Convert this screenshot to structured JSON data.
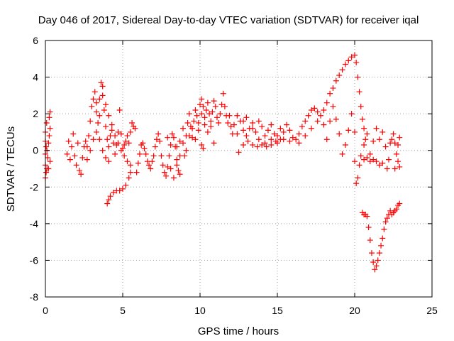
{
  "chart_data": {
    "type": "scatter",
    "title": "Day 046 of 2017, Sidereal Day-to-day VTEC variation (SDTVAR) for receiver iqal",
    "xlabel": "GPS time / hours",
    "ylabel": "SDTVAR / TECUs",
    "xlim": [
      0,
      25
    ],
    "ylim": [
      -8,
      6
    ],
    "xticks": [
      "0",
      "5",
      "10",
      "15",
      "20",
      "25"
    ],
    "yticks": [
      "-8",
      "-6",
      "-4",
      "-2",
      "0",
      "2",
      "4",
      "6"
    ],
    "grid": true,
    "marker": "+",
    "colors": {
      "series": "#ff0000",
      "grid": "#a0a0a0",
      "axis": "#000000"
    },
    "series": [
      {
        "name": "SDTVAR",
        "points": [
          [
            0.0,
            -1.5
          ],
          [
            0.0,
            -0.8
          ],
          [
            0.0,
            -0.2
          ],
          [
            0.0,
            0.5
          ],
          [
            0.0,
            1.0
          ],
          [
            0.05,
            -1.2
          ],
          [
            0.05,
            0.2
          ],
          [
            0.08,
            1.5
          ],
          [
            0.1,
            -1.0
          ],
          [
            0.1,
            0.0
          ],
          [
            0.15,
            -0.4
          ],
          [
            0.2,
            -1.0
          ],
          [
            0.2,
            0.4
          ],
          [
            0.25,
            0.8
          ],
          [
            0.25,
            1.8
          ],
          [
            0.3,
            -0.6
          ],
          [
            0.3,
            1.2
          ],
          [
            0.3,
            2.1
          ],
          [
            1.4,
            -0.2
          ],
          [
            1.5,
            0.5
          ],
          [
            1.6,
            -0.5
          ],
          [
            1.7,
            0.2
          ],
          [
            1.8,
            0.9
          ],
          [
            1.9,
            -0.3
          ],
          [
            2.0,
            -0.8
          ],
          [
            2.1,
            0.4
          ],
          [
            2.2,
            -1.1
          ],
          [
            2.3,
            -1.3
          ],
          [
            2.4,
            -0.4
          ],
          [
            2.5,
            0.2
          ],
          [
            2.6,
            0.5
          ],
          [
            2.7,
            0.2
          ],
          [
            2.8,
            0.8
          ],
          [
            2.9,
            1.6
          ],
          [
            3.0,
            2.4
          ],
          [
            3.1,
            2.8
          ],
          [
            3.2,
            3.2
          ],
          [
            3.3,
            2.1
          ],
          [
            3.4,
            1.5
          ],
          [
            3.5,
            2.8
          ],
          [
            3.6,
            3.7
          ],
          [
            3.7,
            3.0
          ],
          [
            3.8,
            2.2
          ],
          [
            3.9,
            1.3
          ],
          [
            4.0,
            0.6
          ],
          [
            4.1,
            0.2
          ],
          [
            4.2,
            0.8
          ],
          [
            4.3,
            1.4
          ],
          [
            4.4,
            0.4
          ],
          [
            4.5,
            -0.2
          ],
          [
            4.6,
            0.3
          ],
          [
            4.7,
            1.0
          ],
          [
            4.8,
            2.2
          ],
          [
            4.9,
            0.9
          ],
          [
            5.0,
            0.1
          ],
          [
            5.1,
            0.3
          ],
          [
            5.2,
            0.5
          ],
          [
            5.3,
            0.8
          ],
          [
            5.4,
            0.4
          ],
          [
            5.5,
            1.0
          ],
          [
            5.6,
            1.5
          ],
          [
            5.7,
            1.3
          ],
          [
            5.8,
            1.2
          ],
          [
            2.7,
            -0.5
          ],
          [
            2.9,
            0.0
          ],
          [
            3.1,
            0.6
          ],
          [
            3.3,
            1.0
          ],
          [
            3.5,
            0.6
          ],
          [
            3.7,
            0.0
          ],
          [
            3.9,
            -0.4
          ],
          [
            4.1,
            -0.6
          ],
          [
            3.3,
            2.6
          ],
          [
            3.5,
            1.9
          ],
          [
            3.7,
            3.5
          ],
          [
            3.9,
            2.5
          ],
          [
            4.1,
            1.9
          ],
          [
            4.3,
            1.1
          ],
          [
            4.5,
            0.8
          ],
          [
            4.7,
            0.4
          ],
          [
            4.9,
            0.0
          ],
          [
            5.1,
            -0.3
          ],
          [
            5.3,
            -0.6
          ],
          [
            5.5,
            -0.8
          ],
          [
            4.0,
            -2.9
          ],
          [
            4.1,
            -2.7
          ],
          [
            4.2,
            -2.5
          ],
          [
            4.4,
            -2.3
          ],
          [
            4.6,
            -2.2
          ],
          [
            4.8,
            -2.2
          ],
          [
            5.0,
            -2.1
          ],
          [
            5.2,
            -1.9
          ],
          [
            5.4,
            -1.5
          ],
          [
            5.5,
            -1.2
          ],
          [
            5.9,
            -1.2
          ],
          [
            6.0,
            -0.7
          ],
          [
            6.1,
            -0.2
          ],
          [
            6.2,
            0.3
          ],
          [
            6.3,
            0.4
          ],
          [
            6.4,
            0.1
          ],
          [
            6.5,
            -0.2
          ],
          [
            6.6,
            -0.6
          ],
          [
            6.7,
            -0.8
          ],
          [
            6.8,
            -1.0
          ],
          [
            6.9,
            -0.6
          ],
          [
            7.0,
            -0.3
          ],
          [
            7.1,
            0.2
          ],
          [
            7.2,
            0.6
          ],
          [
            7.3,
            0.9
          ],
          [
            7.4,
            0.5
          ],
          [
            7.5,
            -0.3
          ],
          [
            7.6,
            -0.8
          ],
          [
            7.7,
            -1.2
          ],
          [
            7.8,
            -1.4
          ],
          [
            7.9,
            -0.9
          ],
          [
            8.0,
            -0.3
          ],
          [
            8.1,
            0.3
          ],
          [
            8.2,
            0.9
          ],
          [
            8.3,
            0.7
          ],
          [
            8.4,
            0.2
          ],
          [
            8.5,
            -0.5
          ],
          [
            8.6,
            -1.1
          ],
          [
            8.7,
            -1.3
          ],
          [
            7.9,
            0.7
          ],
          [
            8.1,
            -1.0
          ],
          [
            8.3,
            -1.5
          ],
          [
            8.5,
            -0.8
          ],
          [
            8.7,
            0.5
          ],
          [
            8.9,
            1.2
          ],
          [
            9.0,
            -0.3
          ],
          [
            9.1,
            0.8
          ],
          [
            9.2,
            1.5
          ],
          [
            9.3,
            2.0
          ],
          [
            9.4,
            1.3
          ],
          [
            9.5,
            0.7
          ],
          [
            9.6,
            1.6
          ],
          [
            9.7,
            2.2
          ],
          [
            9.8,
            1.9
          ],
          [
            9.9,
            1.1
          ],
          [
            10.0,
            2.5
          ],
          [
            10.1,
            2.8
          ],
          [
            10.2,
            2.4
          ],
          [
            10.3,
            1.8
          ],
          [
            10.4,
            2.2
          ],
          [
            10.5,
            2.6
          ],
          [
            10.6,
            2.0
          ],
          [
            10.7,
            1.6
          ],
          [
            10.8,
            2.1
          ],
          [
            10.9,
            2.7
          ],
          [
            11.0,
            2.4
          ],
          [
            11.1,
            1.8
          ],
          [
            11.2,
            1.5
          ],
          [
            11.3,
            2.0
          ],
          [
            11.4,
            2.5
          ],
          [
            11.5,
            3.1
          ],
          [
            11.6,
            2.4
          ],
          [
            11.7,
            1.9
          ],
          [
            11.8,
            1.5
          ],
          [
            11.9,
            1.9
          ],
          [
            12.0,
            1.3
          ],
          [
            12.1,
            0.9
          ],
          [
            8.5,
            0.2
          ],
          [
            8.7,
            -0.3
          ],
          [
            8.9,
            0.4
          ],
          [
            9.1,
            0.0
          ],
          [
            9.3,
            0.8
          ],
          [
            9.5,
            1.2
          ],
          [
            9.7,
            0.6
          ],
          [
            9.9,
            1.5
          ],
          [
            10.1,
            2.0
          ],
          [
            10.3,
            1.4
          ],
          [
            10.5,
            1.0
          ],
          [
            10.7,
            1.3
          ],
          [
            10.9,
            0.4
          ],
          [
            10.1,
            0.3
          ],
          [
            10.2,
            0.1
          ],
          [
            12.2,
            1.4
          ],
          [
            12.4,
            0.9
          ],
          [
            12.6,
            1.6
          ],
          [
            12.8,
            1.1
          ],
          [
            13.0,
            0.8
          ],
          [
            13.2,
            1.2
          ],
          [
            13.4,
            1.5
          ],
          [
            13.6,
            1.0
          ],
          [
            13.8,
            1.6
          ],
          [
            14.0,
            1.3
          ],
          [
            14.2,
            0.8
          ],
          [
            14.4,
            1.1
          ],
          [
            14.6,
            1.4
          ],
          [
            14.8,
            0.9
          ],
          [
            15.0,
            0.8
          ],
          [
            15.2,
            1.2
          ],
          [
            15.4,
            1.0
          ],
          [
            15.6,
            1.4
          ],
          [
            15.8,
            1.1
          ],
          [
            16.0,
            0.7
          ],
          [
            12.4,
            1.9
          ],
          [
            12.8,
            1.6
          ],
          [
            13.0,
            1.8
          ],
          [
            13.4,
            1.2
          ],
          [
            13.8,
            0.6
          ],
          [
            14.2,
            0.4
          ],
          [
            14.6,
            0.6
          ],
          [
            15.0,
            0.4
          ],
          [
            15.4,
            0.6
          ],
          [
            15.8,
            0.5
          ],
          [
            12.5,
            -0.1
          ],
          [
            12.8,
            0.3
          ],
          [
            13.1,
            0.5
          ],
          [
            13.4,
            0.3
          ],
          [
            13.7,
            0.2
          ],
          [
            14.0,
            0.3
          ],
          [
            14.3,
            0.2
          ],
          [
            14.6,
            0.3
          ],
          [
            14.9,
            0.5
          ],
          [
            15.2,
            0.6
          ],
          [
            16.2,
            0.6
          ],
          [
            16.4,
            0.9
          ],
          [
            16.6,
            1.3
          ],
          [
            16.8,
            1.6
          ],
          [
            17.0,
            1.9
          ],
          [
            17.2,
            2.2
          ],
          [
            17.4,
            2.3
          ],
          [
            17.6,
            2.1
          ],
          [
            17.8,
            1.9
          ],
          [
            18.0,
            2.2
          ],
          [
            18.2,
            2.6
          ],
          [
            18.4,
            3.1
          ],
          [
            18.6,
            3.4
          ],
          [
            18.8,
            3.8
          ],
          [
            19.0,
            4.1
          ],
          [
            19.2,
            4.4
          ],
          [
            19.4,
            4.7
          ],
          [
            19.6,
            4.9
          ],
          [
            19.8,
            5.1
          ],
          [
            20.0,
            5.2
          ],
          [
            20.1,
            4.8
          ],
          [
            20.2,
            4.0
          ],
          [
            20.3,
            3.2
          ],
          [
            20.4,
            2.4
          ],
          [
            20.5,
            1.7
          ],
          [
            20.6,
            1.2
          ],
          [
            20.7,
            0.6
          ],
          [
            16.4,
            0.4
          ],
          [
            16.8,
            0.8
          ],
          [
            17.2,
            1.2
          ],
          [
            17.6,
            1.6
          ],
          [
            18.0,
            1.4
          ],
          [
            18.2,
            0.6
          ],
          [
            18.4,
            1.6
          ],
          [
            18.6,
            2.4
          ],
          [
            18.8,
            1.7
          ],
          [
            19.0,
            0.9
          ],
          [
            19.2,
            -0.2
          ],
          [
            19.4,
            0.3
          ],
          [
            19.6,
            1.1
          ],
          [
            19.8,
            2.0
          ],
          [
            20.0,
            1.0
          ],
          [
            20.0,
            -0.6
          ],
          [
            20.1,
            -1.8
          ],
          [
            20.2,
            -1.5
          ],
          [
            20.3,
            -0.8
          ],
          [
            20.4,
            -0.3
          ],
          [
            20.6,
            -0.5
          ],
          [
            20.8,
            -0.4
          ],
          [
            21.0,
            -0.6
          ],
          [
            21.2,
            -0.5
          ],
          [
            21.4,
            -0.6
          ],
          [
            21.6,
            -0.8
          ],
          [
            21.8,
            -0.7
          ],
          [
            20.5,
            -3.4
          ],
          [
            20.6,
            -3.5
          ],
          [
            20.7,
            -3.5
          ],
          [
            20.8,
            -3.6
          ],
          [
            20.9,
            -4.2
          ],
          [
            21.0,
            -4.9
          ],
          [
            21.1,
            -5.6
          ],
          [
            21.2,
            -6.1
          ],
          [
            21.3,
            -6.5
          ],
          [
            21.4,
            -6.3
          ],
          [
            21.5,
            -6.0
          ],
          [
            21.6,
            -5.6
          ],
          [
            21.7,
            -5.2
          ],
          [
            21.8,
            -4.8
          ],
          [
            21.9,
            -4.3
          ],
          [
            22.0,
            -3.9
          ],
          [
            22.1,
            -3.7
          ],
          [
            22.2,
            -3.5
          ],
          [
            22.3,
            -3.3
          ],
          [
            22.4,
            -3.5
          ],
          [
            22.5,
            -3.4
          ],
          [
            22.6,
            -3.3
          ],
          [
            22.7,
            -3.2
          ],
          [
            22.8,
            -3.0
          ],
          [
            22.9,
            -2.9
          ],
          [
            20.6,
            0.3
          ],
          [
            20.8,
            0.9
          ],
          [
            21.0,
            -0.2
          ],
          [
            21.2,
            0.5
          ],
          [
            21.4,
            1.2
          ],
          [
            21.6,
            0.6
          ],
          [
            21.8,
            1.0
          ],
          [
            22.0,
            0.2
          ],
          [
            22.1,
            -1.0
          ],
          [
            22.2,
            -0.5
          ],
          [
            22.3,
            0.4
          ],
          [
            22.4,
            0.6
          ],
          [
            22.5,
            0.9
          ],
          [
            22.6,
            0.4
          ],
          [
            22.7,
            -0.2
          ],
          [
            22.8,
            -0.6
          ],
          [
            22.9,
            -0.9
          ],
          [
            22.9,
            0.7
          ],
          [
            22.6,
            -1.0
          ],
          [
            22.8,
            0.3
          ]
        ]
      }
    ]
  }
}
